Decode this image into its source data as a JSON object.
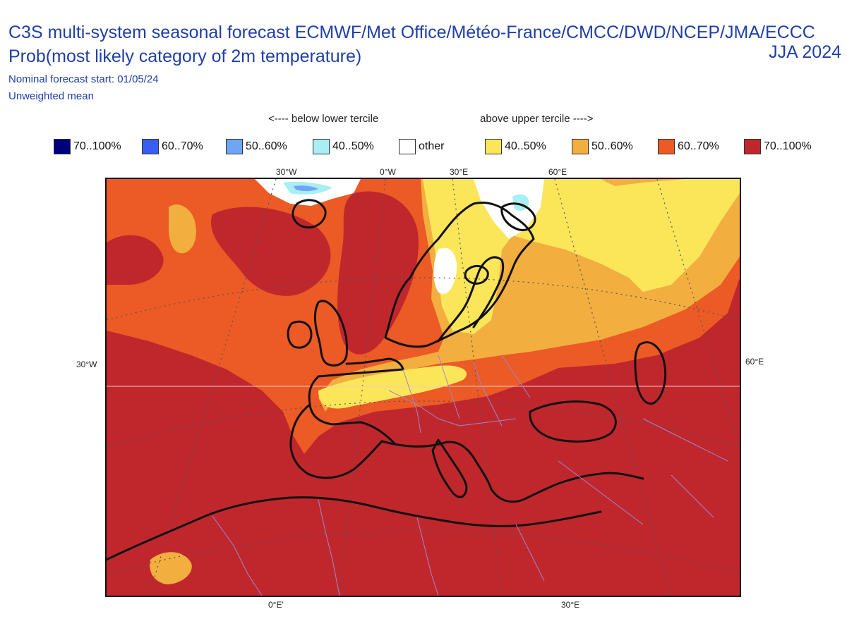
{
  "header": {
    "title": "C3S multi-system seasonal forecast ECMWF/Met Office/Météo-France/CMCC/DWD/NCEP/JMA/ECCC",
    "subtitle": "Prob(most likely category of 2m temperature)",
    "period": "JJA 2024",
    "forecast_start": "Nominal forecast start: 01/05/24",
    "mean_type": "Unweighted mean"
  },
  "legend": {
    "below_label": "<---- below lower tercile",
    "above_label": "above upper tercile ---->",
    "items": [
      {
        "label": "70..100%",
        "color": "#00007d"
      },
      {
        "label": "60..70%",
        "color": "#3a5cf0"
      },
      {
        "label": "50..60%",
        "color": "#6fa6f4"
      },
      {
        "label": "40..50%",
        "color": "#a9eef2"
      },
      {
        "label": "other",
        "color": "#ffffff"
      },
      {
        "label": "40..50%",
        "color": "#fbe65a"
      },
      {
        "label": "50..60%",
        "color": "#f2ae3f"
      },
      {
        "label": "60..70%",
        "color": "#ec5a25"
      },
      {
        "label": "70..100%",
        "color": "#c0272d"
      }
    ]
  },
  "grid_labels": {
    "top": [
      "30°W",
      "0°W",
      "30°E",
      "60°E"
    ],
    "left": "30°W",
    "right": "60°E",
    "bottom": [
      "0°E'",
      "30°E"
    ]
  },
  "map": {
    "region": "Europe",
    "dominant_category": "above upper tercile 70..100%",
    "colors": {
      "c70": "#c0272d",
      "c60": "#ec5a25",
      "c50": "#f2ae3f",
      "c40": "#fbe65a",
      "other": "#ffffff",
      "cold40": "#a9eef2",
      "cold50": "#6fa6f4",
      "coast": "#111111",
      "border": "#9e86c8",
      "grid": "#555555"
    }
  }
}
